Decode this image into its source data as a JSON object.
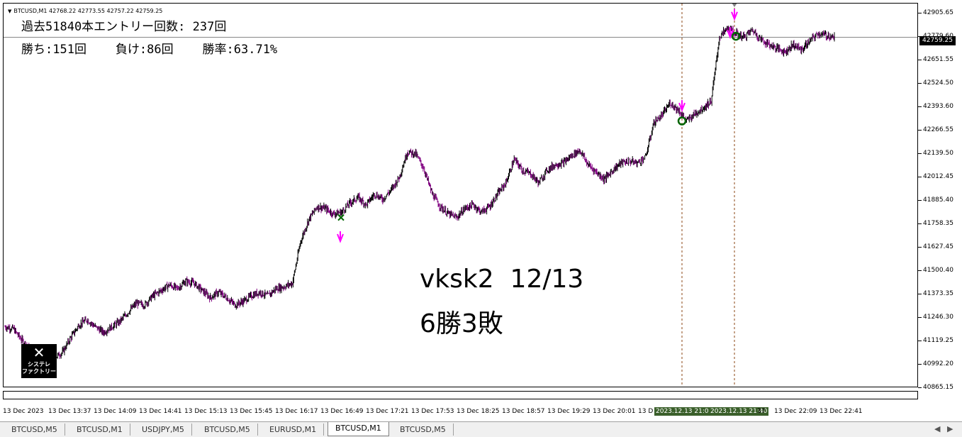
{
  "chart": {
    "symbol_line": "BTCUSD,M1  42768.22 42773.55 42757.22 42759.25",
    "stats_line1": "過去51840本エントリー回数: 237回",
    "stats_line2": "勝ち:151回    負け:86回    勝率:63.71%",
    "note_line1": "vksk2  12/13",
    "note_line2": "6勝3敗",
    "logo_line1": "システレ",
    "logo_line2": "ファクトリー",
    "current_price": "42759.25",
    "top_badge": "42779.60",
    "price_ticks": [
      "42905.65",
      "42779.60",
      "42651.55",
      "42524.50",
      "42393.60",
      "42266.55",
      "42139.50",
      "42012.45",
      "41885.40",
      "41758.35",
      "41627.45",
      "41500.40",
      "41373.35",
      "41246.30",
      "41119.25",
      "40992.20",
      "40865.15"
    ],
    "time_ticks": [
      "13 Dec 2023",
      "13 Dec 13:37",
      "13 Dec 14:09",
      "13 Dec 14:41",
      "13 Dec 15:13",
      "13 Dec 15:45",
      "13 Dec 16:17",
      "13 Dec 16:49",
      "13 Dec 17:21",
      "13 Dec 17:53",
      "13 Dec 18:25",
      "13 Dec 18:57",
      "13 Dec 19:29",
      "13 Dec 20:01",
      "13 D",
      "2023.12.13 21:03",
      "2023.12.13 21:40",
      "37",
      "13 Dec 22:09",
      "13 Dec 22:41"
    ],
    "colors": {
      "candle": "#000000",
      "wick_down": "#800080",
      "arrow": "#ff00ff",
      "circle": "#006400",
      "cross": "#006400",
      "vline": "#8b4513",
      "highlight": "#3a5f2a"
    }
  },
  "tabs": [
    "BTCUSD,M5",
    "BTCUSD,M1",
    "USDJPY,M5",
    "BTCUSD,M5",
    "EURUSD,M1",
    "BTCUSD,M1",
    "BTCUSD,M5"
  ],
  "active_tab_index": 5,
  "chart_data": {
    "type": "line",
    "x_start": "13 Dec 2023",
    "x_end": "13 Dec 22:41",
    "ylim": [
      40865.15,
      42905.65
    ],
    "series": [
      {
        "values": [
          41170,
          41160,
          41100,
          41050,
          41020,
          40960,
          41000,
          41030,
          41110,
          41180,
          41210,
          41170,
          41140,
          41170,
          41200,
          41250,
          41300,
          41290,
          41340,
          41370,
          41400,
          41380,
          41420,
          41410,
          41370,
          41330,
          41360,
          41330,
          41290,
          41310,
          41340,
          41360,
          41340,
          41380,
          41390,
          41410,
          41640,
          41760,
          41830,
          41820,
          41790,
          41800,
          41850,
          41880,
          41840,
          41900,
          41870,
          41920,
          41990,
          42130,
          42120,
          42040,
          41900,
          41830,
          41790,
          41770,
          41820,
          41840,
          41800,
          41830,
          41900,
          41960,
          42090,
          42030,
          42010,
          41960,
          42030,
          42060,
          42070,
          42110,
          42140,
          42060,
          42020,
          41980,
          42030,
          42070,
          42080,
          42070,
          42100,
          42290,
          42330,
          42400,
          42360,
          42300,
          42340,
          42370,
          42410,
          42760,
          42810,
          42780,
          42760,
          42800,
          42750,
          42720,
          42700,
          42680,
          42720,
          42690,
          42740,
          42780,
          42770,
          42759
        ]
      }
    ]
  }
}
